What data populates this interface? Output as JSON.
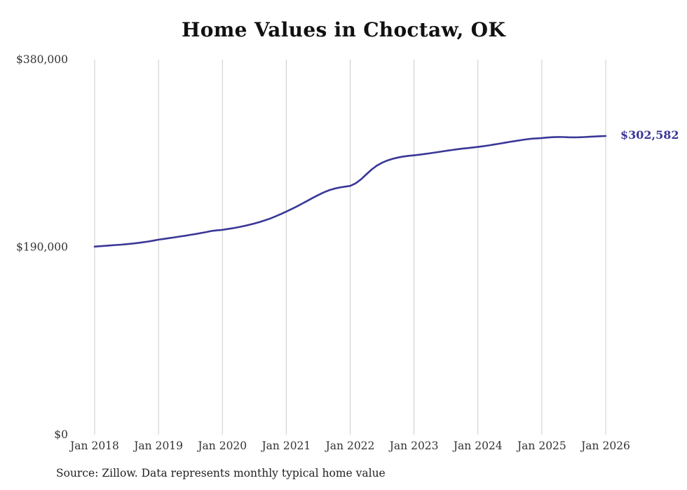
{
  "title": "Home Values in Choctaw, OK",
  "end_label": "$302,582",
  "source_note": "Source: Zillow. Data represents monthly typical home value",
  "colors": {
    "line": "#3a3797",
    "grid": "#cccccc",
    "axis_text": "#333333",
    "title_text": "#111111"
  },
  "chart_data": {
    "type": "line",
    "title": "Home Values in Choctaw, OK",
    "xlabel": "",
    "ylabel": "",
    "ylim": [
      0,
      380000
    ],
    "grid": "vertical-only",
    "legend": "none",
    "x_ticks": [
      "Jan 2018",
      "Jan 2019",
      "Jan 2020",
      "Jan 2021",
      "Jan 2022",
      "Jan 2023",
      "Jan 2024",
      "Jan 2025",
      "Jan 2026"
    ],
    "y_ticks": [
      {
        "value": 0,
        "label": "$0"
      },
      {
        "value": 190000,
        "label": "$190,000"
      },
      {
        "value": 380000,
        "label": "$380,000"
      }
    ],
    "final_value": 302582,
    "final_value_label": "$302,582",
    "series": [
      {
        "name": "Typical home value",
        "frequency": "monthly",
        "x_start": "2018-01",
        "x_end": "2026-01",
        "values": [
          190500,
          190900,
          191300,
          191700,
          192100,
          192500,
          193000,
          193500,
          194100,
          194800,
          195600,
          196500,
          197500,
          198300,
          199100,
          199900,
          200700,
          201500,
          202400,
          203300,
          204300,
          205300,
          206400,
          207000,
          207500,
          208300,
          209200,
          210200,
          211300,
          212500,
          213900,
          215400,
          217100,
          219000,
          221200,
          223500,
          226000,
          228600,
          231300,
          234100,
          237000,
          239900,
          242700,
          245300,
          247500,
          249200,
          250400,
          251200,
          252000,
          254500,
          258500,
          263500,
          268500,
          272500,
          275500,
          277800,
          279500,
          280800,
          281800,
          282500,
          283000,
          283600,
          284300,
          285100,
          285900,
          286700,
          287500,
          288300,
          289000,
          289700,
          290300,
          290900,
          291500,
          292200,
          293000,
          293900,
          294800,
          295700,
          296600,
          297500,
          298300,
          299100,
          299800,
          300200,
          300500,
          301000,
          301400,
          301600,
          301500,
          301300,
          301200,
          301300,
          301500,
          301800,
          302100,
          302400,
          302582
        ]
      }
    ]
  }
}
